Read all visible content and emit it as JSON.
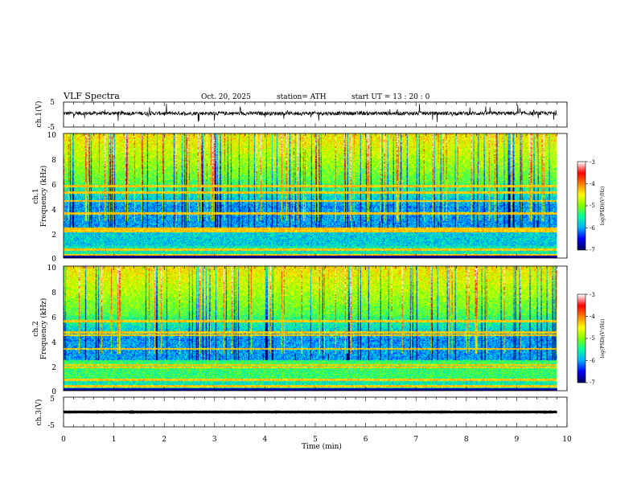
{
  "header": {
    "title": "VLF  Spectra",
    "date": "Oct. 20, 2025",
    "station": "station= ATH",
    "start": "start  UT  =   13 : 20 : 0"
  },
  "chart_data": {
    "type": "heatmap",
    "x_axis": {
      "label": "Time  (min)",
      "range": [
        0,
        10
      ],
      "ticks": [
        "0",
        "1",
        "2",
        "3",
        "4",
        "5",
        "6",
        "7",
        "8",
        "9",
        "10"
      ],
      "data_end": 9.8
    },
    "panels": [
      {
        "id": "ch1_waveform",
        "type": "line",
        "ylabel": "ch.1(V)",
        "ylim": [
          -5,
          5
        ],
        "yticks": [
          "5",
          "-5"
        ],
        "mean_level": 0.5,
        "noise_amplitude": 1.5
      },
      {
        "id": "ch1_spectrogram",
        "type": "heatmap",
        "ylabel": "ch.1",
        "ylabel2": "Frequency  (kHz)",
        "ylim": [
          0,
          10
        ],
        "yticks": [
          "0",
          "2",
          "4",
          "6",
          "8",
          "10"
        ],
        "colorbar": {
          "label": "log(PSD)(V²/Hz)",
          "range": [
            -7,
            -3
          ],
          "ticks": [
            "-3",
            "-4",
            "-5",
            "-6",
            "-7"
          ]
        },
        "bands_khz": [
          0.3,
          0.7,
          2.2,
          2.4,
          3.6,
          4.6,
          5.3,
          5.8
        ]
      },
      {
        "id": "ch2_spectrogram",
        "type": "heatmap",
        "ylabel": "ch.2",
        "ylabel2": "Frequency  (kHz)",
        "ylim": [
          0,
          10
        ],
        "yticks": [
          "0",
          "2",
          "4",
          "6",
          "8",
          "10"
        ],
        "colorbar": {
          "label": "log(PSD)(V²/Hz)",
          "range": [
            -7,
            -3
          ],
          "ticks": [
            "-3",
            "-4",
            "-5",
            "-6",
            "-7"
          ]
        },
        "bands_khz": [
          0.4,
          0.9,
          1.9,
          2.1,
          3.4,
          4.5,
          4.7,
          5.6
        ]
      },
      {
        "id": "ch3_waveform",
        "type": "line",
        "ylabel": "ch.3(V)",
        "ylim": [
          -5,
          5
        ],
        "yticks": [
          "5",
          "-5"
        ],
        "mean_level": 0.0,
        "noise_amplitude": 0.1
      }
    ],
    "colormap": [
      "#000060",
      "#0000ff",
      "#00b0ff",
      "#00ffa0",
      "#80ff00",
      "#ffff00",
      "#ff8000",
      "#ff0000",
      "#ffffff"
    ]
  }
}
